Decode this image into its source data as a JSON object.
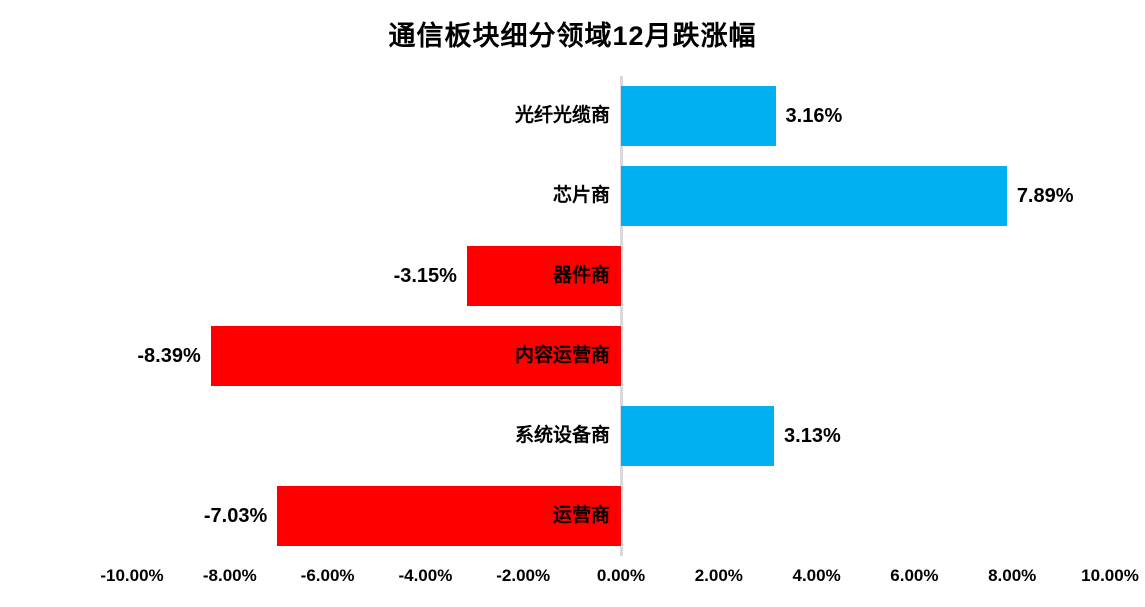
{
  "chart_data": {
    "type": "bar",
    "orientation": "horizontal",
    "title": "通信板块细分领域12月跌涨幅",
    "categories": [
      "光纤光缆商",
      "芯片商",
      "器件商",
      "内容运营商",
      "系统设备商",
      "运营商"
    ],
    "values": [
      3.16,
      7.89,
      -3.15,
      -8.39,
      3.13,
      -7.03
    ],
    "value_labels": [
      "3.16%",
      "7.89%",
      "-3.15%",
      "-8.39%",
      "3.13%",
      "-7.03%"
    ],
    "xlim": [
      -10,
      10
    ],
    "x_tick_values": [
      -10,
      -8,
      -6,
      -4,
      -2,
      0,
      2,
      4,
      6,
      8,
      10
    ],
    "x_tick_labels": [
      "-10.00%",
      "-8.00%",
      "-6.00%",
      "-4.00%",
      "-2.00%",
      "0.00%",
      "2.00%",
      "4.00%",
      "6.00%",
      "8.00%",
      "10.00%"
    ],
    "positive_color": "#00B0F0",
    "negative_color": "#FF0000",
    "axis_line_color": "#D9D9D9",
    "text_color": "#000000",
    "background_color": "#FFFFFF",
    "grid": false,
    "legend": false,
    "value_label_position": "outside-end",
    "category_label_position": "at-zero-axis"
  }
}
